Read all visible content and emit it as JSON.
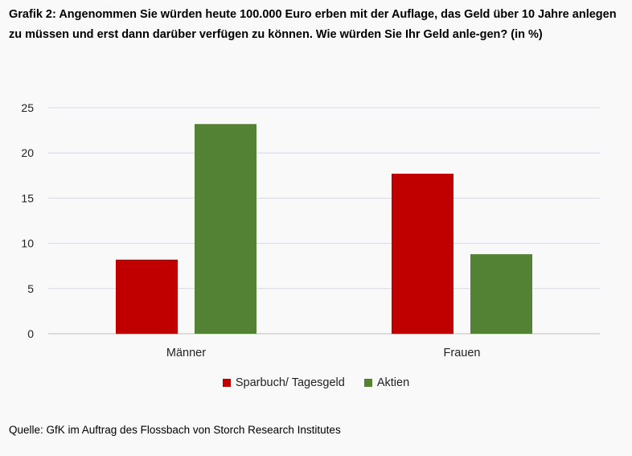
{
  "title": "Grafik 2: Angenommen Sie würden heute 100.000 Euro erben mit der Auflage, das Geld über 10 Jahre anlegen zu müssen und erst dann darüber verfügen zu können. Wie würden Sie Ihr Geld anle-gen? (in %)",
  "source": "Quelle: GfK im Auftrag des Flossbach von Storch Research Institutes",
  "chart_data": {
    "type": "bar",
    "categories": [
      "Männer",
      "Frauen"
    ],
    "series": [
      {
        "name": "Sparbuch/ Tagesgeld",
        "values": [
          8.2,
          17.7
        ],
        "color": "#c00000"
      },
      {
        "name": "Aktien",
        "values": [
          23.2,
          8.8
        ],
        "color": "#548235"
      }
    ],
    "ylim": [
      0,
      25
    ],
    "yticks": [
      0,
      5,
      10,
      15,
      20,
      25
    ],
    "grid": true,
    "legend_position": "bottom"
  }
}
